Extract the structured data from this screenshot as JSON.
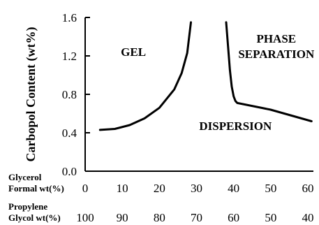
{
  "chart_data": {
    "type": "line",
    "title": "",
    "ylabel": "Carbopol Content (wt%)",
    "ylim": [
      0.0,
      1.6
    ],
    "yticks": [
      "0.0",
      "0.4",
      "0.8",
      "1.2",
      "1.6"
    ],
    "xlim": [
      0,
      60
    ],
    "x_axes": [
      {
        "label_line1": "Glycerol",
        "label_line2": "Formal wt(%)",
        "values": [
          0,
          10,
          20,
          30,
          40,
          50,
          60
        ],
        "tick_labels": [
          "0",
          "10",
          "20",
          "30",
          "40",
          "50",
          "60"
        ]
      },
      {
        "label_line1": "Propylene",
        "label_line2": "Glycol wt(%)",
        "values": [
          100,
          90,
          80,
          70,
          60,
          50,
          40
        ],
        "tick_labels": [
          "100",
          "90",
          "80",
          "70",
          "60",
          "50",
          "40"
        ]
      }
    ],
    "series": [
      {
        "boundary": "gel-dispersion",
        "x": [
          4.0,
          8.0,
          12.0,
          16.0,
          20.0,
          24.0,
          26.0,
          27.5,
          28.5
        ],
        "y": [
          0.43,
          0.44,
          0.48,
          0.55,
          0.66,
          0.85,
          1.02,
          1.23,
          1.55
        ]
      },
      {
        "boundary": "phase-separation",
        "x": [
          38.0,
          38.5,
          39.0,
          39.5,
          40.0,
          40.5,
          41.0,
          50.0,
          61.0
        ],
        "y": [
          1.55,
          1.3,
          1.05,
          0.88,
          0.78,
          0.73,
          0.71,
          0.64,
          0.52
        ]
      }
    ],
    "regions": [
      {
        "label": "GEL",
        "x": 13,
        "y": 1.2
      },
      {
        "label": "PHASE",
        "x": 51.5,
        "y": 1.34
      },
      {
        "label": "SEPARATION",
        "x": 51.5,
        "y": 1.18
      },
      {
        "label": "DISPERSION",
        "x": 40.5,
        "y": 0.43
      }
    ],
    "grid": false,
    "legend": "none"
  }
}
